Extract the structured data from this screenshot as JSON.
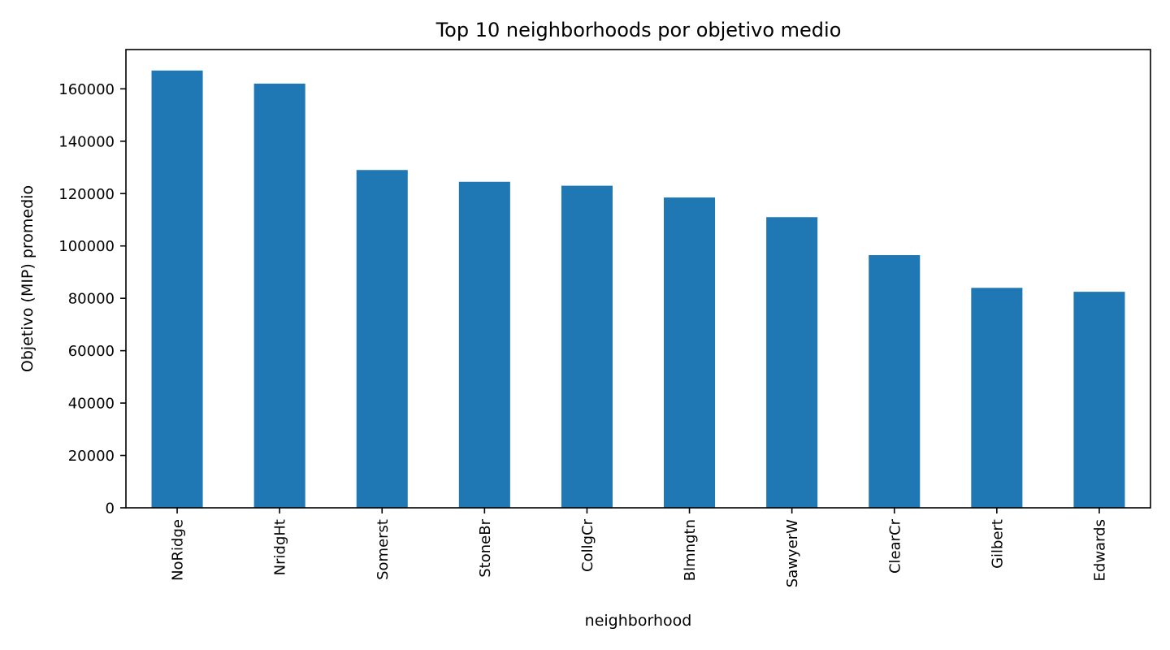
{
  "chart_data": {
    "type": "bar",
    "title": "Top 10 neighborhoods por objetivo medio",
    "xlabel": "neighborhood",
    "ylabel": "Objetivo (MIP) promedio",
    "categories": [
      "NoRidge",
      "NridgHt",
      "Somerst",
      "StoneBr",
      "CollgCr",
      "Blmngtn",
      "SawyerW",
      "ClearCr",
      "Gilbert",
      "Edwards"
    ],
    "values": [
      167000,
      162000,
      129000,
      124500,
      123000,
      118500,
      111000,
      96500,
      84000,
      82500
    ],
    "ylim": [
      0,
      175000
    ],
    "yticks": [
      0,
      20000,
      40000,
      60000,
      80000,
      100000,
      120000,
      140000,
      160000
    ],
    "ytick_labels": [
      "0",
      "20000",
      "40000",
      "60000",
      "80000",
      "100000",
      "120000",
      "140000",
      "160000"
    ],
    "bar_color": "#1f77b4",
    "grid": false,
    "legend": "none"
  }
}
